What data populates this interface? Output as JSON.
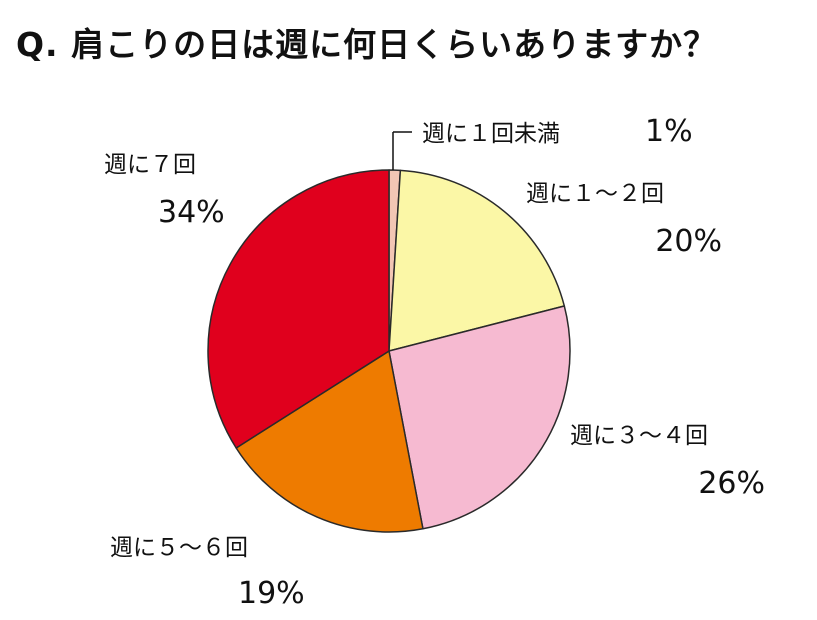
{
  "title": "Q. 肩こりの日は週に何日くらいありますか？",
  "chart_data": {
    "type": "pie",
    "categories": [
      "週に１回未満",
      "週に１～２回",
      "週に３～４回",
      "週に５～６回",
      "週に７回"
    ],
    "values": [
      1,
      20,
      26,
      19,
      34
    ],
    "value_labels": [
      "1%",
      "20%",
      "26%",
      "19%",
      "34%"
    ],
    "colors": [
      "#f2c6b4",
      "#fbf7a6",
      "#f6bad1",
      "#ee7b00",
      "#e0001d"
    ],
    "start_angle": "12 o'clock",
    "direction": "clockwise"
  }
}
